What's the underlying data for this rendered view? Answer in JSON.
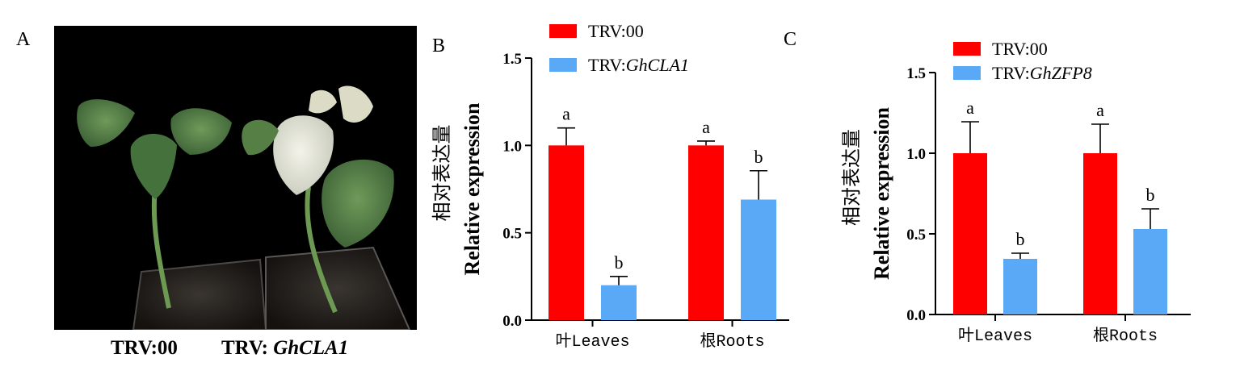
{
  "panel_a": {
    "label": "A",
    "caption_left": "TRV:00",
    "caption_right_prefix": "TRV: ",
    "caption_right_gene": "GhCLA1"
  },
  "colors": {
    "control": "#ff0000",
    "treatment": "#5aa9f6",
    "photo_bg": "#000000"
  },
  "chart_data": [
    {
      "panel": "B",
      "type": "bar",
      "categories": [
        "叶Leaves",
        "根Roots"
      ],
      "series": [
        {
          "name": "TRV:00",
          "values": [
            1.0,
            1.0
          ],
          "errors": [
            0.1,
            0.025
          ],
          "letters": [
            "a",
            "a"
          ]
        },
        {
          "name_prefix": "TRV:",
          "name_gene": "GhCLA1",
          "values": [
            0.2,
            0.69
          ],
          "errors": [
            0.05,
            0.165
          ],
          "letters": [
            "b",
            "b"
          ]
        }
      ],
      "ylabel_cn": "相对表达量",
      "ylabel_en": "Relative expression",
      "ylim": [
        0,
        1.5
      ],
      "yticks": [
        "0.0",
        "0.5",
        "1.0",
        "1.5"
      ],
      "legend": "top"
    },
    {
      "panel": "C",
      "type": "bar",
      "categories": [
        "叶Leaves",
        "根Roots"
      ],
      "series": [
        {
          "name": "TRV:00",
          "values": [
            1.0,
            1.0
          ],
          "errors": [
            0.195,
            0.18
          ],
          "letters": [
            "a",
            "a"
          ]
        },
        {
          "name_prefix": "TRV:",
          "name_gene": "GhZFP8",
          "values": [
            0.345,
            0.53
          ],
          "errors": [
            0.035,
            0.125
          ],
          "letters": [
            "b",
            "b"
          ]
        }
      ],
      "ylabel_cn": "相对表达量",
      "ylabel_en": "Relative expression",
      "ylim": [
        0,
        1.5
      ],
      "yticks": [
        "0.0",
        "0.5",
        "1.0",
        "1.5"
      ],
      "legend": "top"
    }
  ]
}
